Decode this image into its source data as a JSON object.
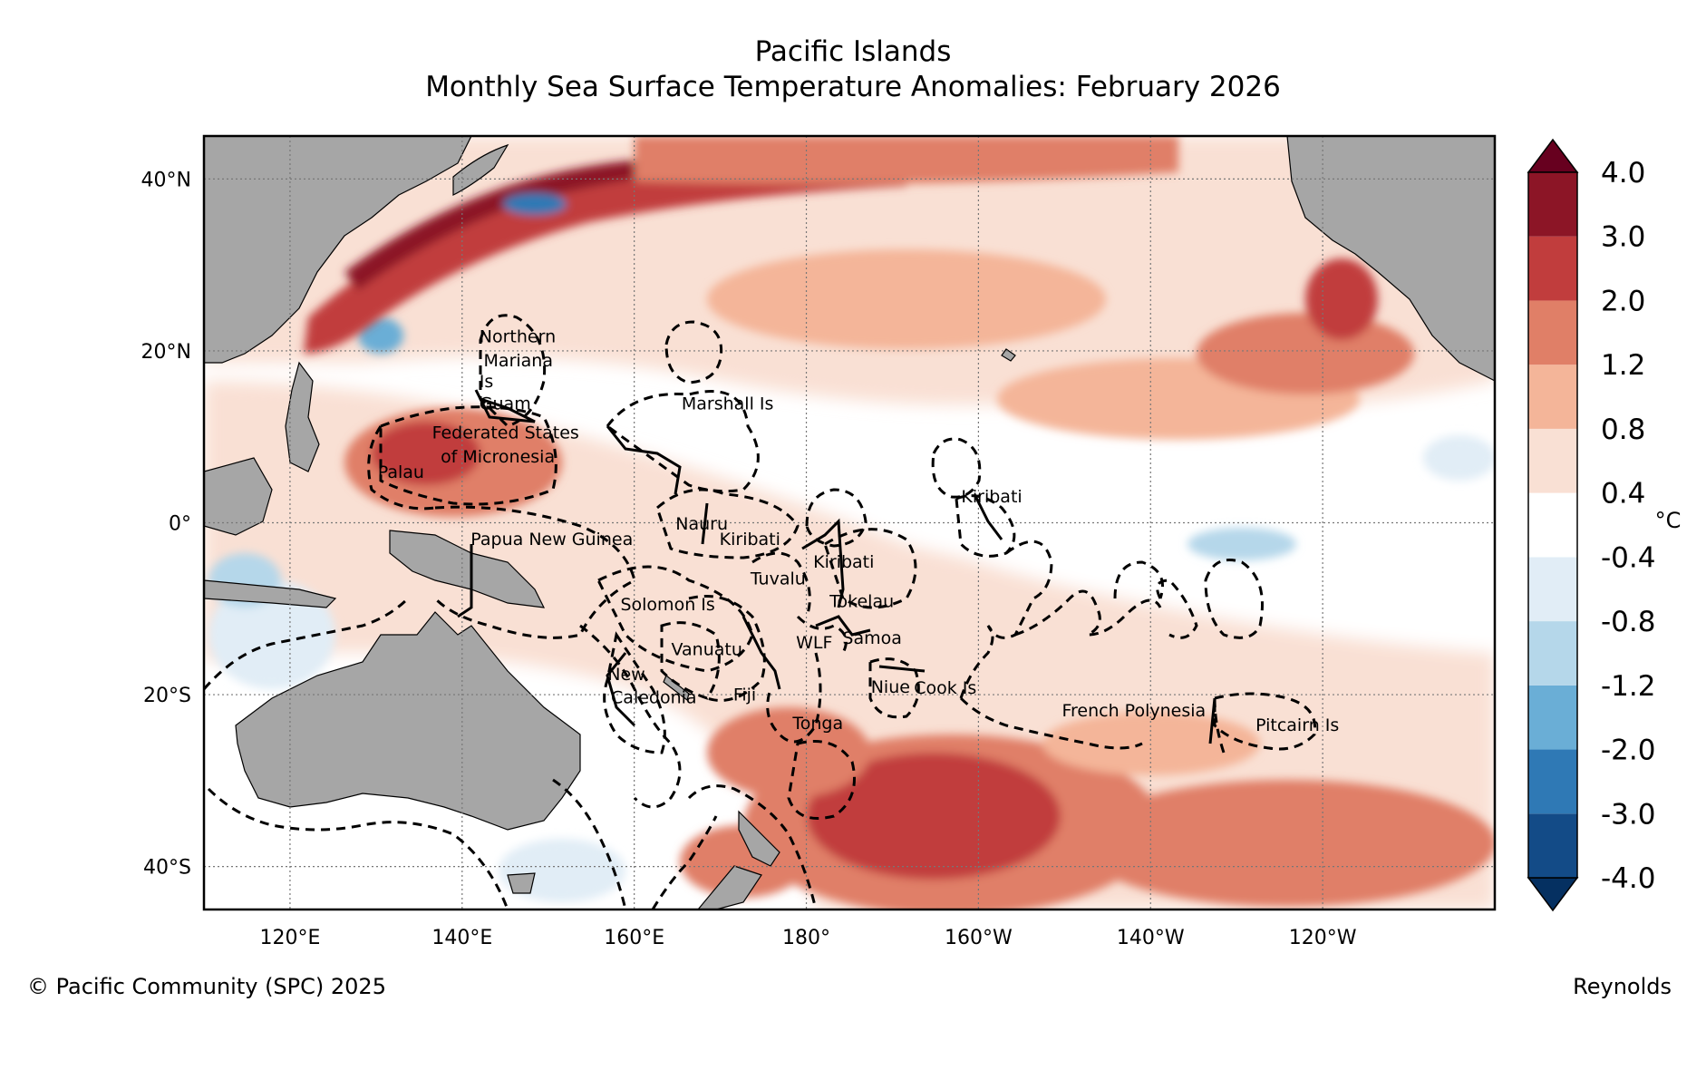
{
  "title": "Pacific Islands",
  "subtitle": "Monthly Sea Surface Temperature Anomalies: February 2026",
  "footer": {
    "copyright": "© Pacific Community (SPC) 2025",
    "dataset": "Reynolds"
  },
  "map": {
    "lon_range": [
      110,
      260
    ],
    "lat_range": [
      -45,
      45
    ],
    "lon_ticks": [
      {
        "lon": 120,
        "label": "120°E"
      },
      {
        "lon": 140,
        "label": "140°E"
      },
      {
        "lon": 160,
        "label": "160°E"
      },
      {
        "lon": 180,
        "label": "180°"
      },
      {
        "lon": 200,
        "label": "160°W"
      },
      {
        "lon": 220,
        "label": "140°W"
      },
      {
        "lon": 240,
        "label": "120°W"
      }
    ],
    "lat_ticks": [
      {
        "lat": 40,
        "label": "40°N"
      },
      {
        "lat": 20,
        "label": "20°N"
      },
      {
        "lat": 0,
        "label": "0°"
      },
      {
        "lat": -20,
        "label": "20°S"
      },
      {
        "lat": -40,
        "label": "40°S"
      }
    ],
    "grid": "dotted",
    "region_labels": [
      {
        "text": "Northern",
        "lon": 142,
        "lat": 21
      },
      {
        "text": "Mariana",
        "lon": 142.5,
        "lat": 18.2
      },
      {
        "text": "Is",
        "lon": 142,
        "lat": 15.8
      },
      {
        "text": "Guam",
        "lon": 142,
        "lat": 13.2
      },
      {
        "text": "Marshall Is",
        "lon": 165.5,
        "lat": 13.2
      },
      {
        "text": "Federated States",
        "lon": 136.5,
        "lat": 9.8
      },
      {
        "text": "of Micronesia",
        "lon": 137.5,
        "lat": 7.0
      },
      {
        "text": "Palau",
        "lon": 130.2,
        "lat": 5.2
      },
      {
        "text": "Kiribati",
        "lon": 198,
        "lat": 2.4
      },
      {
        "text": "Nauru",
        "lon": 164.8,
        "lat": -0.8
      },
      {
        "text": "Papua New Guinea",
        "lon": 141,
        "lat": -2.6
      },
      {
        "text": "Kiribati",
        "lon": 169.9,
        "lat": -2.6
      },
      {
        "text": "Kiribati",
        "lon": 180.8,
        "lat": -5.2
      },
      {
        "text": "Tuvalu",
        "lon": 173.5,
        "lat": -7.2
      },
      {
        "text": "Solomon Is",
        "lon": 158.4,
        "lat": -10.2
      },
      {
        "text": "Tokelau",
        "lon": 182.7,
        "lat": -9.8
      },
      {
        "text": "WLF",
        "lon": 178.8,
        "lat": -14.6
      },
      {
        "text": "Samoa",
        "lon": 184.2,
        "lat": -14.1
      },
      {
        "text": "Vanuatu",
        "lon": 164.3,
        "lat": -15.4
      },
      {
        "text": "New",
        "lon": 156.9,
        "lat": -18.3
      },
      {
        "text": "Caledonia",
        "lon": 157.3,
        "lat": -21.0
      },
      {
        "text": "Fiji",
        "lon": 171.5,
        "lat": -20.7
      },
      {
        "text": "Niue",
        "lon": 187.5,
        "lat": -19.8
      },
      {
        "text": "Cook Is",
        "lon": 192.5,
        "lat": -19.9
      },
      {
        "text": "French Polynesia",
        "lon": 209.7,
        "lat": -22.5
      },
      {
        "text": "Tonga",
        "lon": 178.4,
        "lat": -24.0
      },
      {
        "text": "Pitcairn Is",
        "lon": 232.2,
        "lat": -24.2
      }
    ]
  },
  "colorbar": {
    "unit": "°C",
    "levels": [
      "-4.0",
      "-3.0",
      "-2.0",
      "-1.2",
      "-0.8",
      "-0.4",
      "0.4",
      "0.8",
      "1.2",
      "2.0",
      "3.0",
      "4.0"
    ],
    "colors": [
      "#053061",
      "#134b87",
      "#2f79b5",
      "#6aaed6",
      "#b5d7ea",
      "#e1edf6",
      "#ffffff",
      "#f9e0d4",
      "#f4b599",
      "#e07f67",
      "#c13d3d",
      "#8c1526",
      "#67001f"
    ]
  },
  "land_color": "#a6a6a6",
  "ocean_color": "#ffffff"
}
